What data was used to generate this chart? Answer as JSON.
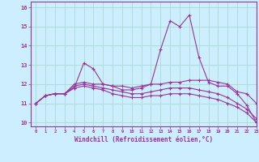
{
  "title": "",
  "xlabel": "Windchill (Refroidissement éolien,°C)",
  "background_color": "#cceeff",
  "grid_color": "#aaddcc",
  "line_color": "#993399",
  "xlim": [
    -0.5,
    23
  ],
  "ylim": [
    9.8,
    16.3
  ],
  "yticks": [
    10,
    11,
    12,
    13,
    14,
    15,
    16
  ],
  "xticks": [
    0,
    1,
    2,
    3,
    4,
    5,
    6,
    7,
    8,
    9,
    10,
    11,
    12,
    13,
    14,
    15,
    16,
    17,
    18,
    19,
    20,
    21,
    22,
    23
  ],
  "series": [
    [
      11.0,
      11.4,
      11.5,
      11.5,
      11.8,
      13.1,
      12.8,
      12.0,
      11.9,
      11.9,
      11.8,
      11.9,
      12.0,
      13.8,
      15.3,
      15.0,
      15.6,
      13.4,
      12.1,
      11.9,
      11.9,
      11.5,
      10.9,
      10.0
    ],
    [
      11.0,
      11.4,
      11.5,
      11.5,
      12.0,
      12.1,
      12.0,
      12.0,
      11.9,
      11.7,
      11.7,
      11.8,
      12.0,
      12.0,
      12.1,
      12.1,
      12.2,
      12.2,
      12.2,
      12.1,
      12.0,
      11.6,
      11.5,
      11.0
    ],
    [
      11.0,
      11.4,
      11.5,
      11.5,
      11.8,
      11.9,
      11.8,
      11.7,
      11.5,
      11.4,
      11.3,
      11.3,
      11.4,
      11.4,
      11.5,
      11.5,
      11.5,
      11.4,
      11.3,
      11.2,
      11.0,
      10.8,
      10.5,
      10.0
    ],
    [
      11.0,
      11.4,
      11.5,
      11.5,
      11.9,
      12.0,
      11.9,
      11.8,
      11.7,
      11.6,
      11.5,
      11.5,
      11.6,
      11.7,
      11.8,
      11.8,
      11.8,
      11.7,
      11.6,
      11.5,
      11.3,
      11.0,
      10.7,
      10.2
    ]
  ]
}
